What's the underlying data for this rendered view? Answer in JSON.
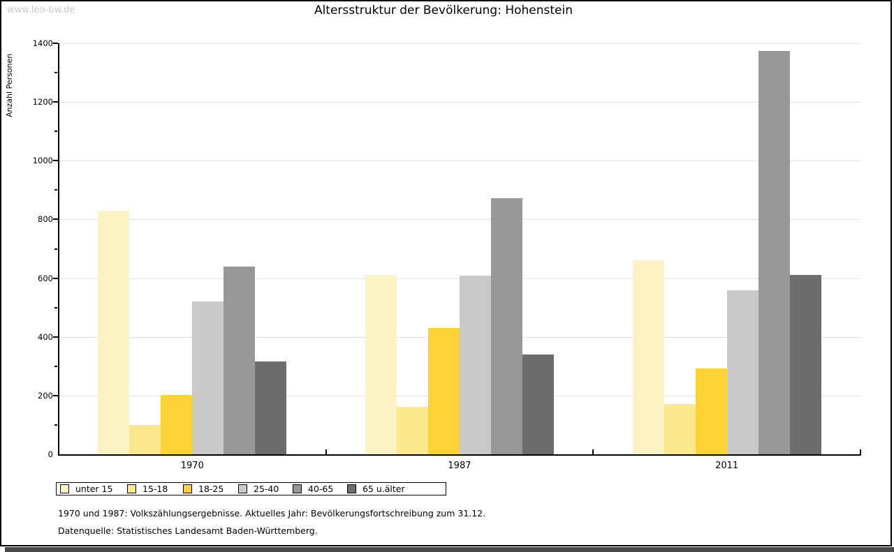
{
  "watermark": "www.leo-bw.de",
  "title": "Altersstruktur der Bevölkerung: Hohenstein",
  "chart_data": {
    "type": "bar",
    "categories": [
      "1970",
      "1987",
      "2011"
    ],
    "series": [
      {
        "name": "unter 15",
        "color": "#fbf3c4",
        "values": [
          830,
          612,
          661
        ]
      },
      {
        "name": "15-18",
        "color": "#fbe88d",
        "values": [
          100,
          161,
          171
        ]
      },
      {
        "name": "18-25",
        "color": "#fbd335",
        "values": [
          203,
          430,
          292
        ]
      },
      {
        "name": "25-40",
        "color": "#c9c9c9",
        "values": [
          520,
          609,
          559
        ]
      },
      {
        "name": "40-65",
        "color": "#989898",
        "values": [
          640,
          873,
          1374
        ]
      },
      {
        "name": "65 u.älter",
        "color": "#6d6d6d",
        "values": [
          316,
          341,
          611
        ]
      }
    ],
    "title": "Altersstruktur der Bevölkerung: Hohenstein",
    "xlabel": "",
    "ylabel": "Anzahl Personen",
    "ylim": [
      0,
      1400
    ],
    "ytick_step": 200,
    "minor_tick_step": 100,
    "grid": true,
    "legend_position": "bottom"
  },
  "footnotes": [
    "1970 und 1987: Volkszählungsergebnisse. Aktuelles Jahr: Bevölkerungsfortschreibung zum 31.12.",
    "Datenquelle: Statistisches Landesamt Baden-Württemberg."
  ]
}
